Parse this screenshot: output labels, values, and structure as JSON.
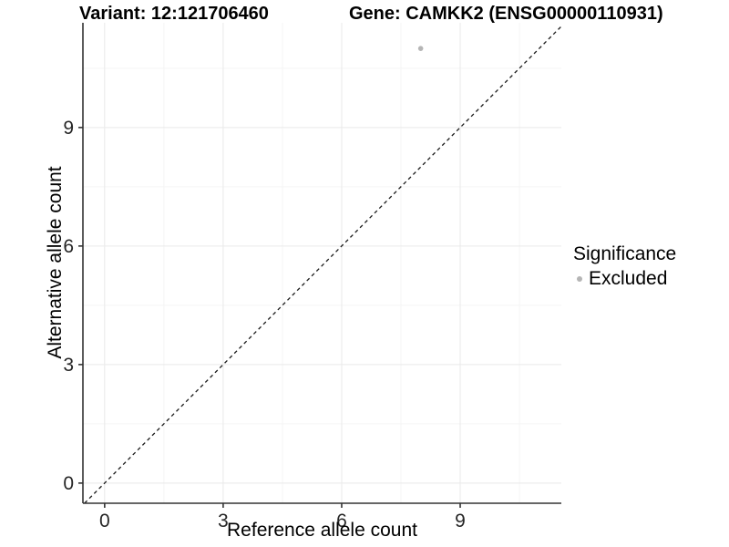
{
  "header": {
    "variant_title": "Variant: 12:121706460",
    "gene_title": "Gene: CAMKK2 (ENSG00000110931)"
  },
  "legend": {
    "title": "Significance",
    "items": [
      {
        "label": "Excluded",
        "color": "#b5b5b5"
      }
    ]
  },
  "chart_data": {
    "type": "scatter",
    "title": "",
    "xlabel": "Reference allele count",
    "ylabel": "Alternative allele count",
    "xlim": [
      -0.55,
      11.56
    ],
    "ylim": [
      -0.51,
      11.65
    ],
    "x_ticks": [
      0,
      3,
      6,
      9
    ],
    "y_ticks": [
      0,
      3,
      6,
      9
    ],
    "x_minor_ticks": [
      1.5,
      4.5,
      7.5,
      10.5
    ],
    "y_minor_ticks": [
      1.5,
      4.5,
      7.5,
      10.5
    ],
    "grid": true,
    "legend_position": "right",
    "series": [
      {
        "name": "Excluded",
        "color": "#b5b5b5",
        "points": [
          {
            "x": 8,
            "y": 11
          }
        ]
      }
    ],
    "reference_line": {
      "label": "identity",
      "slope": 1,
      "intercept": 0,
      "style": "dashed",
      "color": "#1a1a1a"
    }
  },
  "style_colors": {
    "axis_line": "#333333",
    "tick_mark": "#333333",
    "tick_label": "#262626",
    "major_grid": "#e9e9e9",
    "minor_grid": "#f5f5f5",
    "background": "#ffffff"
  }
}
